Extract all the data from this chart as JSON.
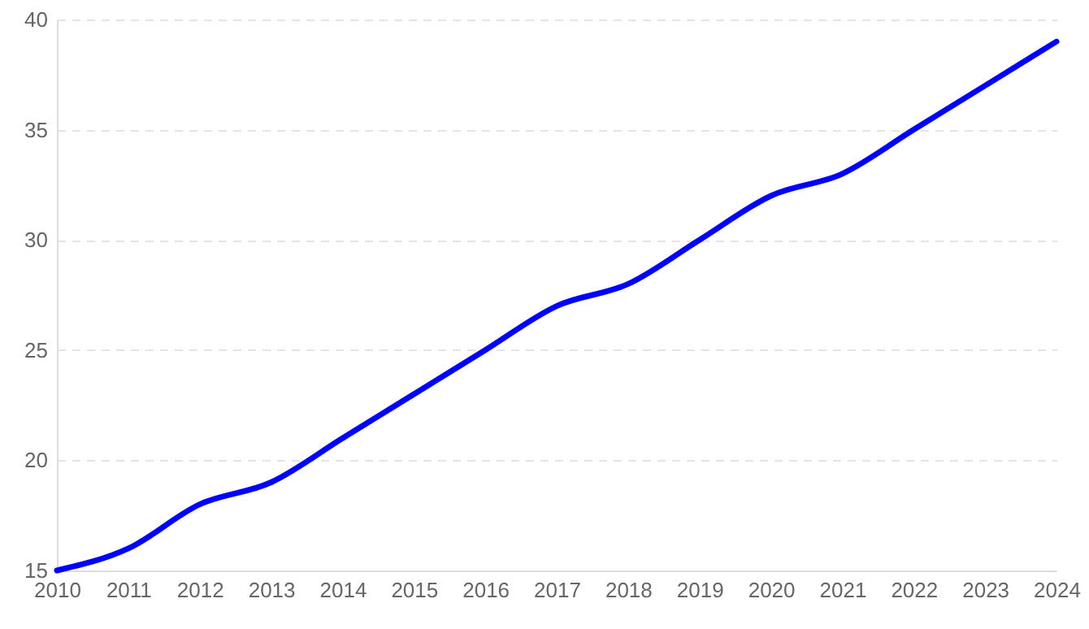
{
  "chart_data": {
    "type": "line",
    "categories": [
      "2010",
      "2011",
      "2012",
      "2013",
      "2014",
      "2015",
      "2016",
      "2017",
      "2018",
      "2019",
      "2020",
      "2021",
      "2022",
      "2023",
      "2024"
    ],
    "series": [
      {
        "color": "#0000ff",
        "values": [
          15,
          16,
          18,
          19,
          21,
          23,
          25,
          27,
          28,
          30,
          32,
          33,
          35,
          37,
          39
        ]
      }
    ],
    "ylim": [
      15,
      40
    ],
    "yticks": [
      15,
      20,
      25,
      30,
      35,
      40
    ],
    "grid": "y",
    "line_style": "solid"
  }
}
